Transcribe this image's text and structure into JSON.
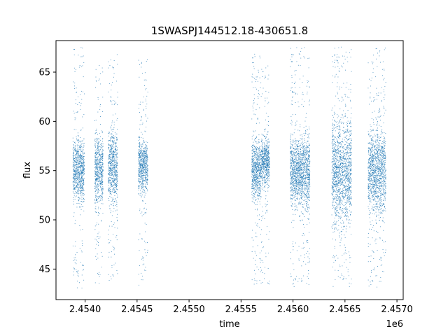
{
  "chart_data": {
    "type": "scatter",
    "title": "1SWASPJ144512.18-430651.8",
    "xlabel": "time",
    "ylabel": "flux",
    "x_offset_label": "1e6",
    "xlim": [
      2453720,
      2457060
    ],
    "ylim": [
      41.9,
      68.2
    ],
    "x_ticks": [
      2454000,
      2454500,
      2455000,
      2455500,
      2456000,
      2456500,
      2457000
    ],
    "x_tick_labels": [
      "2.4540",
      "2.4545",
      "2.4550",
      "2.4555",
      "2.4560",
      "2.4565",
      "2.4570"
    ],
    "y_ticks": [
      45,
      50,
      55,
      60,
      65
    ],
    "y_tick_labels": [
      "45",
      "50",
      "55",
      "60",
      "65"
    ],
    "grid": false,
    "marker_color": "#1f77b4",
    "series": [
      {
        "clusters": [
          {
            "x": [
              2453880,
              2453990
            ],
            "center": 55.0,
            "core_halfwidth": 2.6,
            "min": 43.0,
            "max": 67.6
          },
          {
            "x": [
              2454090,
              2454170
            ],
            "center": 55.0,
            "core_halfwidth": 3.0,
            "min": 43.4,
            "max": 66.0
          },
          {
            "x": [
              2454220,
              2454310
            ],
            "center": 55.5,
            "core_halfwidth": 3.2,
            "min": 43.6,
            "max": 67.0
          },
          {
            "x": [
              2454510,
              2454600
            ],
            "center": 55.5,
            "core_halfwidth": 2.5,
            "min": 43.4,
            "max": 66.4
          },
          {
            "x": [
              2455600,
              2455690
            ],
            "center": 55.0,
            "core_halfwidth": 2.6,
            "min": 43.5,
            "max": 67.0
          },
          {
            "x": [
              2455690,
              2455770
            ],
            "center": 56.0,
            "core_halfwidth": 2.0,
            "min": 43.5,
            "max": 66.5
          },
          {
            "x": [
              2455970,
              2456110
            ],
            "center": 55.0,
            "core_halfwidth": 3.0,
            "min": 43.2,
            "max": 67.6
          },
          {
            "x": [
              2456110,
              2456160
            ],
            "center": 55.0,
            "core_halfwidth": 3.3,
            "min": 43.4,
            "max": 67.0
          },
          {
            "x": [
              2456370,
              2456560
            ],
            "center": 55.0,
            "core_halfwidth": 4.5,
            "min": 43.0,
            "max": 67.6
          },
          {
            "x": [
              2456720,
              2456800
            ],
            "center": 55.0,
            "core_halfwidth": 3.5,
            "min": 43.0,
            "max": 67.6
          },
          {
            "x": [
              2456800,
              2456890
            ],
            "center": 55.0,
            "core_halfwidth": 4.0,
            "min": 43.2,
            "max": 67.6
          }
        ]
      }
    ]
  }
}
